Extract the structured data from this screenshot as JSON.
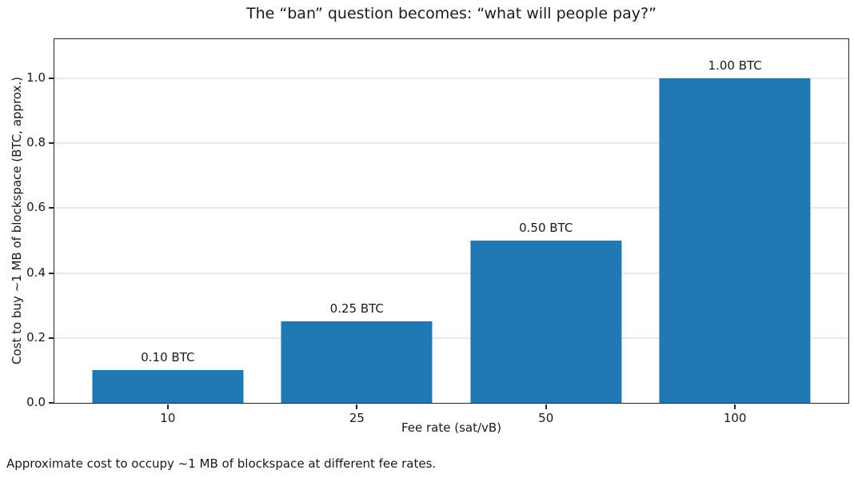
{
  "chart_data": {
    "type": "bar",
    "title": "The “ban” question becomes: “what will people pay?”",
    "categories": [
      "10",
      "25",
      "50",
      "100"
    ],
    "values": [
      0.1,
      0.25,
      0.5,
      1.0
    ],
    "bar_labels": [
      "0.10 BTC",
      "0.25 BTC",
      "0.50 BTC",
      "1.00 BTC"
    ],
    "xlabel": "Fee rate (sat/vB)",
    "ylabel": "Cost to buy ~1 MB of blockspace (BTC, approx.)",
    "caption": "Approximate cost to occupy ~1 MB of blockspace at different fee rates.",
    "ytick_labels": [
      "0.0",
      "0.2",
      "0.4",
      "0.6",
      "0.8",
      "1.0"
    ],
    "ytick_values": [
      0.0,
      0.2,
      0.4,
      0.6,
      0.8,
      1.0
    ],
    "ylim": [
      0,
      1.12
    ],
    "xlim": [
      -0.6,
      3.6
    ],
    "bar_width": 0.8,
    "grid": "horizontal",
    "legend": "none",
    "bar_color": "#1f77b4",
    "grid_color": "#d5d5d5",
    "spine_color": "#262626",
    "text_color": "#1a1a1a",
    "background_color": "#ffffff"
  }
}
